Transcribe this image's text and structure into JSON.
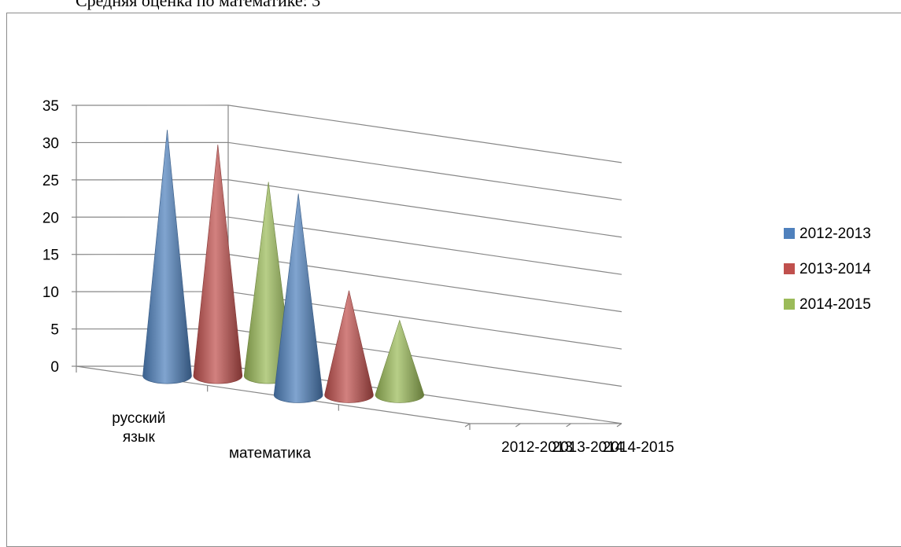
{
  "caption": "Средняя оценка по математике: 3",
  "chart_data": {
    "type": "bar",
    "shape": "cone-3d",
    "categories": [
      "русский язык",
      "математика",
      ""
    ],
    "depth_categories": [
      "2012-2013",
      "2013-2014",
      "2014-2015"
    ],
    "series": [
      {
        "name": "2012-2013",
        "values": [
          33,
          27,
          null
        ],
        "color": "#4f81bd"
      },
      {
        "name": "2013-2014",
        "values": [
          31,
          14,
          null
        ],
        "color": "#c0504d"
      },
      {
        "name": "2014-2015",
        "values": [
          26,
          10,
          null
        ],
        "color": "#9bbb59"
      }
    ],
    "ylim": [
      0,
      35
    ],
    "yticks": [
      0,
      5,
      10,
      15,
      20,
      25,
      30,
      35
    ],
    "grid": true,
    "legend_position": "right"
  }
}
